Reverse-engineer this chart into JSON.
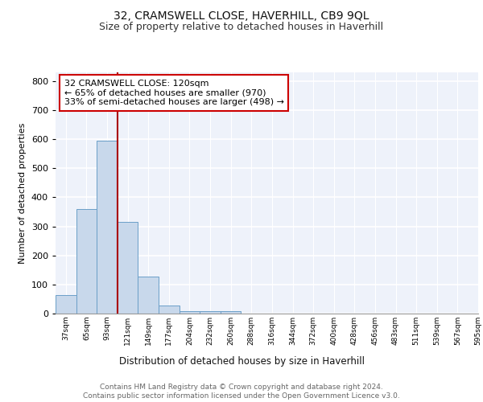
{
  "title": "32, CRAMSWELL CLOSE, HAVERHILL, CB9 9QL",
  "subtitle": "Size of property relative to detached houses in Haverhill",
  "xlabel": "Distribution of detached houses by size in Haverhill",
  "ylabel": "Number of detached properties",
  "bar_values": [
    65,
    360,
    595,
    315,
    128,
    27,
    9,
    7,
    7,
    0,
    0,
    0,
    0,
    0,
    0,
    0,
    0,
    0,
    0,
    0
  ],
  "bin_labels": [
    "37sqm",
    "65sqm",
    "93sqm",
    "121sqm",
    "149sqm",
    "177sqm",
    "204sqm",
    "232sqm",
    "260sqm",
    "288sqm",
    "316sqm",
    "344sqm",
    "372sqm",
    "400sqm",
    "428sqm",
    "456sqm",
    "483sqm",
    "511sqm",
    "539sqm",
    "567sqm",
    "595sqm"
  ],
  "bar_color": "#c8d8eb",
  "bar_edge_color": "#6b9fc8",
  "background_color": "#eef2fa",
  "grid_color": "#ffffff",
  "vline_x": 3,
  "vline_color": "#aa0000",
  "annotation_text": "32 CRAMSWELL CLOSE: 120sqm\n← 65% of detached houses are smaller (970)\n33% of semi-detached houses are larger (498) →",
  "annotation_box_color": "#cc0000",
  "ylim": [
    0,
    830
  ],
  "yticks": [
    0,
    100,
    200,
    300,
    400,
    500,
    600,
    700,
    800
  ],
  "footer_text": "Contains HM Land Registry data © Crown copyright and database right 2024.\nContains public sector information licensed under the Open Government Licence v3.0.",
  "title_fontsize": 10,
  "subtitle_fontsize": 9,
  "annotation_fontsize": 8,
  "ylabel_fontsize": 8,
  "xlabel_fontsize": 8.5,
  "footer_fontsize": 6.5
}
